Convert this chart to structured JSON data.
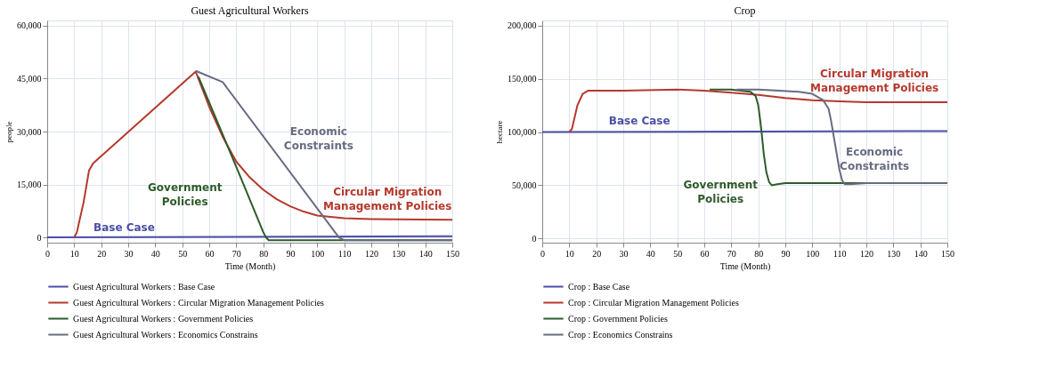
{
  "chart_data": [
    {
      "type": "line",
      "title": "Guest Agricultural Workers",
      "xlabel": "Time (Month)",
      "ylabel": "people",
      "xlim": [
        0,
        150
      ],
      "xticks": [
        0,
        10,
        20,
        30,
        40,
        50,
        60,
        70,
        80,
        90,
        100,
        110,
        120,
        130,
        140,
        150
      ],
      "ylim": [
        -1500,
        61500
      ],
      "yticks": [
        {
          "value": 0,
          "label": "0"
        },
        {
          "value": 15000,
          "label": "15,000"
        },
        {
          "value": 30000,
          "label": "30,000"
        },
        {
          "value": 45000,
          "label": "45,000"
        },
        {
          "value": 60000,
          "label": "60,000"
        }
      ],
      "grid": true,
      "legend": "bottom",
      "line_style": "solid",
      "series": [
        {
          "name": "Guest Agricultural Workers : Base Case",
          "color": "#4b4fa6",
          "x": [
            0,
            150
          ],
          "values": [
            0,
            300
          ]
        },
        {
          "name": "Guest Agricultural Workers : Circular Migration Management Policies",
          "color": "#b5392c",
          "x": [
            10,
            11,
            13.5,
            15.5,
            17,
            55,
            60,
            65,
            70,
            75,
            80,
            85,
            90,
            95,
            100,
            110,
            120,
            150
          ],
          "values": [
            0,
            1500,
            10000,
            19000,
            21000,
            47000,
            37000,
            28500,
            21500,
            17000,
            13500,
            10800,
            8800,
            7300,
            6200,
            5400,
            5200,
            5000
          ]
        },
        {
          "name": "Guest Agricultural Workers : Government Policies",
          "color": "#2e5b2b",
          "x": [
            56,
            70,
            80,
            81,
            82,
            150
          ],
          "values": [
            45500,
            20000,
            1500,
            0,
            -800,
            -800
          ]
        },
        {
          "name": "Guest Agricultural Workers : Economics Constrains",
          "color": "#686b80",
          "x": [
            55,
            65,
            108,
            110,
            150
          ],
          "values": [
            47200,
            44000,
            0,
            -800,
            -800
          ]
        }
      ],
      "annotations": [
        "Base Case",
        "Circular Migration\nManagement Policies",
        "Government\nPolicies",
        "Economic\nConstraints"
      ]
    },
    {
      "type": "line",
      "title": "Crop",
      "xlabel": "Time (Month)",
      "ylabel": "hectare",
      "xlim": [
        0,
        150
      ],
      "xticks": [
        0,
        10,
        20,
        30,
        40,
        50,
        60,
        70,
        80,
        90,
        100,
        110,
        120,
        130,
        140,
        150
      ],
      "ylim": [
        -4000,
        205000
      ],
      "yticks": [
        {
          "value": 0,
          "label": "0"
        },
        {
          "value": 50000,
          "label": "50,000"
        },
        {
          "value": 100000,
          "label": "100,000"
        },
        {
          "value": 150000,
          "label": "150,000"
        },
        {
          "value": 200000,
          "label": "200,000"
        }
      ],
      "grid": true,
      "legend": "bottom",
      "line_style": "solid",
      "series": [
        {
          "name": "Crop : Base Case",
          "color": "#4b4fa6",
          "x": [
            0,
            150
          ],
          "values": [
            100000,
            101000
          ]
        },
        {
          "name": "Crop : Circular Migration Management Policies",
          "color": "#b5392c",
          "x": [
            10,
            11,
            13,
            15,
            17,
            30,
            50,
            60,
            70,
            80,
            90,
            100,
            110,
            120,
            150
          ],
          "values": [
            100000,
            103000,
            125000,
            136000,
            139000,
            139000,
            140000,
            139000,
            137000,
            135000,
            132000,
            130000,
            129000,
            128000,
            128000
          ]
        },
        {
          "name": "Crop : Government Policies",
          "color": "#2e5b2b",
          "x": [
            62,
            70,
            77,
            79,
            80,
            81,
            82,
            83,
            84,
            85,
            87,
            90,
            150
          ],
          "values": [
            140000,
            140000,
            138000,
            134000,
            125000,
            105000,
            80000,
            62000,
            53000,
            50000,
            51000,
            52000,
            52000
          ]
        },
        {
          "name": "Crop : Economics Constrains",
          "color": "#686b80",
          "x": [
            72,
            80,
            95,
            100,
            104,
            106,
            107,
            108,
            109,
            110,
            111,
            112,
            114,
            120,
            150
          ],
          "values": [
            140000,
            140000,
            138000,
            136000,
            130000,
            122000,
            110000,
            95000,
            80000,
            65000,
            55000,
            51000,
            51000,
            52000,
            52000
          ]
        }
      ],
      "annotations": [
        "Base Case",
        "Circular Migration\nManagement Policies",
        "Government\nPolicies",
        "Economic\nConstraints"
      ]
    }
  ]
}
